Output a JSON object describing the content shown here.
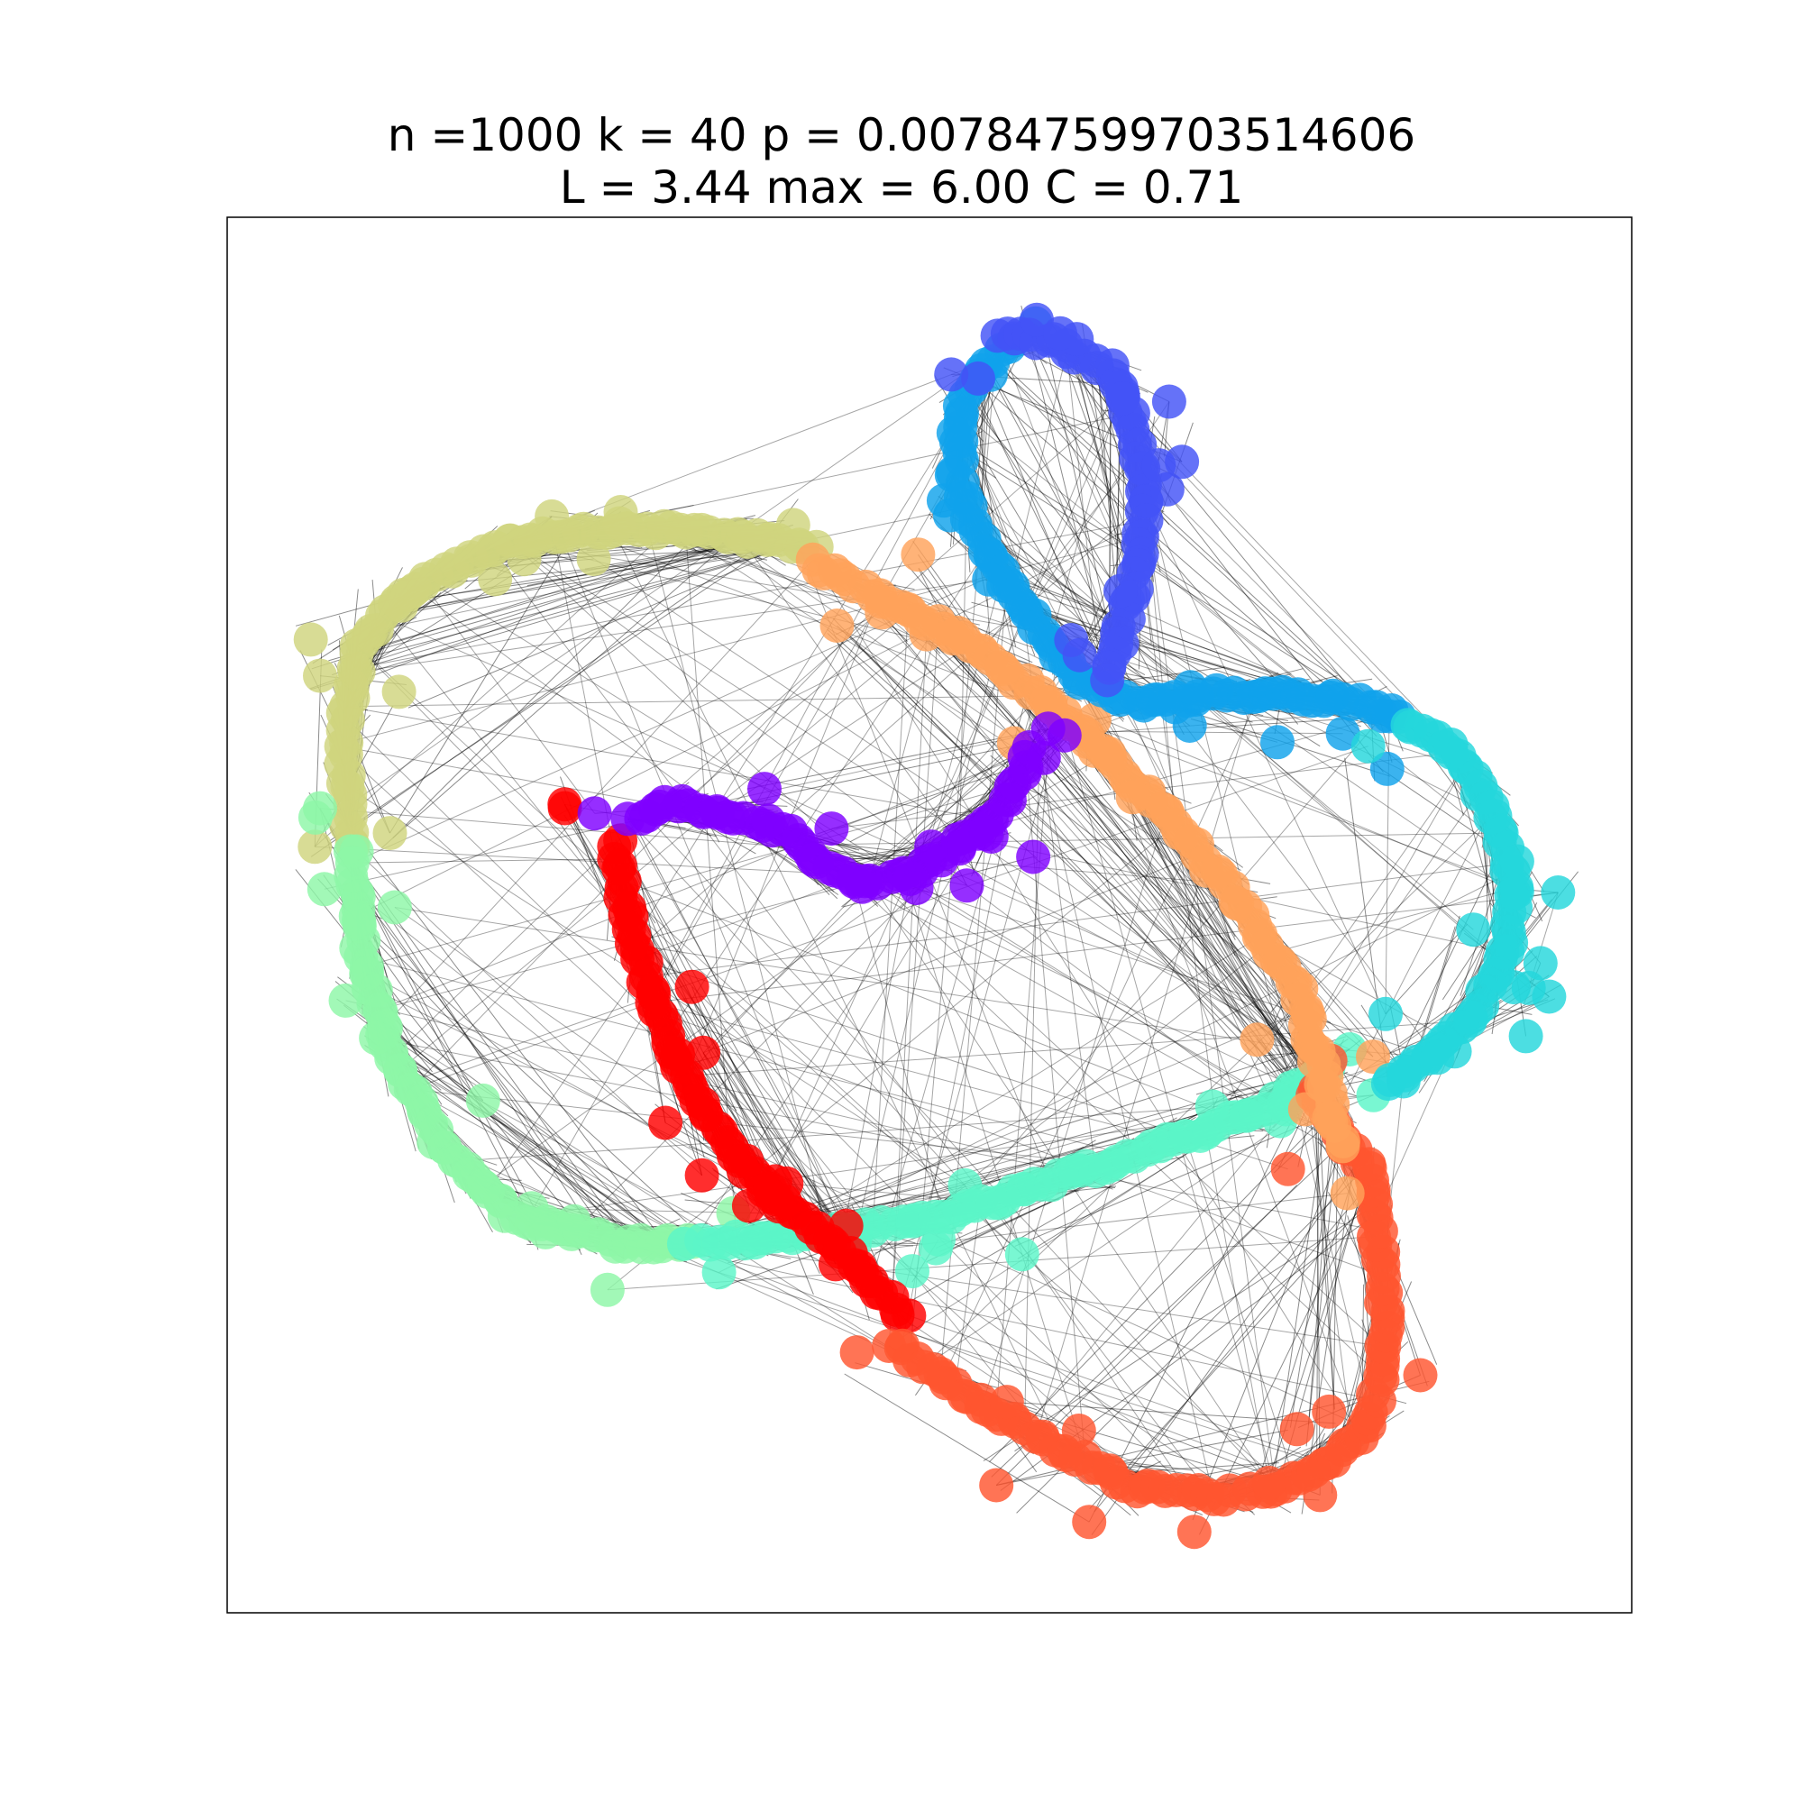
{
  "title": {
    "line1": "n =1000 k = 40 p = 0.007847599703514606",
    "line2": "L = 3.44 max = 6.00 C = 0.71"
  },
  "graph": {
    "type": "ring network (Watts–Strogatz style)",
    "edge_color": "#000000",
    "node_colormap": "rainbow",
    "communities": [
      {
        "name": "violet",
        "color": "#7f00ff"
      },
      {
        "name": "blue",
        "color": "#4353f7"
      },
      {
        "name": "azure",
        "color": "#10a2ec"
      },
      {
        "name": "cyan",
        "color": "#25d7dc"
      },
      {
        "name": "aquamarine",
        "color": "#5cf5c8"
      },
      {
        "name": "light-green",
        "color": "#8ef6a7"
      },
      {
        "name": "khaki",
        "color": "#cfd47e"
      },
      {
        "name": "orange",
        "color": "#ffa25a"
      },
      {
        "name": "red-orange",
        "color": "#ff5530"
      },
      {
        "name": "red",
        "color": "#ff0000"
      }
    ]
  }
}
